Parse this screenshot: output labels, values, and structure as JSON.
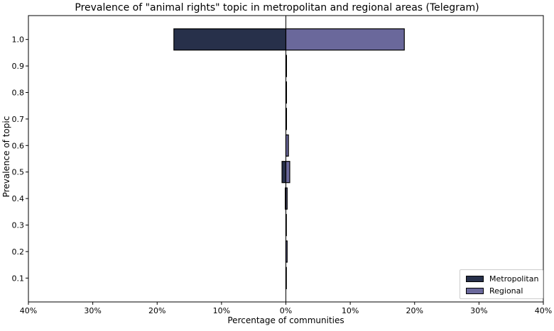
{
  "chart_data": {
    "type": "bar",
    "orientation": "horizontal",
    "title": "Prevalence of \"animal rights\" topic in metropolitan and regional areas (Telegram)",
    "xlabel": "Percentage of communities",
    "ylabel": "Prevalence of topic",
    "categories": [
      "0.1",
      "0.2",
      "0.3",
      "0.4",
      "0.5",
      "0.6",
      "0.7",
      "0.8",
      "0.9",
      "1.0"
    ],
    "category_values": [
      0.1,
      0.2,
      0.3,
      0.4,
      0.5,
      0.6,
      0.7,
      0.8,
      0.9,
      1.0
    ],
    "series": [
      {
        "name": "Metropolitan",
        "color": "#27304a",
        "direction": "left",
        "values": [
          0,
          0,
          0,
          0.1,
          0.6,
          0,
          0,
          0,
          0,
          17.4
        ]
      },
      {
        "name": "Regional",
        "color": "#6a689b",
        "direction": "right",
        "values": [
          0,
          0.2,
          0,
          0.2,
          0.6,
          0.4,
          0.1,
          0.1,
          0.1,
          18.4
        ]
      }
    ],
    "xlim": [
      -40,
      40
    ],
    "ylim": [
      0.01,
      1.09
    ],
    "xticks": [
      -40,
      -30,
      -20,
      -10,
      0,
      10,
      20,
      30,
      40
    ],
    "xtick_labels": [
      "40%",
      "30%",
      "20%",
      "10%",
      "0%",
      "10%",
      "20%",
      "30%",
      "40%"
    ],
    "yticks": [
      0.1,
      0.2,
      0.3,
      0.4,
      0.5,
      0.6,
      0.7,
      0.8,
      0.9,
      1.0
    ],
    "ytick_labels": [
      "0.1",
      "0.2",
      "0.3",
      "0.4",
      "0.5",
      "0.6",
      "0.7",
      "0.8",
      "0.9",
      "1.0"
    ],
    "grid": false,
    "legend_position": "lower-right"
  }
}
